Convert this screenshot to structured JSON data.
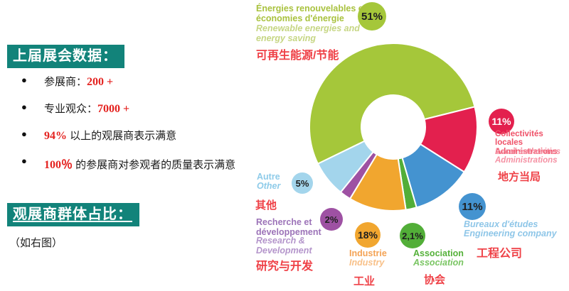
{
  "left_panel": {
    "header1": "上届展会数据：",
    "bullets": [
      {
        "pre": "参展商：",
        "em": "200 +",
        "post": ""
      },
      {
        "pre": "专业观众：",
        "em": "7000 +",
        "post": ""
      },
      {
        "pre": "",
        "em": "94%",
        "post": " 以上的观展商表示满意"
      },
      {
        "pre": "",
        "em": "100％",
        "post": " 的参展商对参观者的质量表示满意"
      }
    ],
    "header2": "观展商群体占比：",
    "note": "（如右图）"
  },
  "colors": {
    "teal": "#12837a",
    "stat_red": "#e42320",
    "chart_label_red": "#ef4147",
    "segment_gap": "#ffffff"
  },
  "chart_data": {
    "type": "pie",
    "donut": true,
    "start_angle_deg": 244,
    "unit": "%",
    "legend_position": "around-chart",
    "segments": [
      {
        "label_fr": "Énergies renouvelables et\néconomies d'énergie",
        "label_en": "Renewable energies and\nenergy saving",
        "label_zh": "可再生能源/节能",
        "value_pct": 51,
        "badge": "51%",
        "sweep_deg": 192,
        "color": "#a5c73a",
        "badge_text": "#1f1f1f",
        "fr_color": "#a9c23e",
        "en_color": "#c6d683"
      },
      {
        "label_fr": "Collectivités locales\nAdministrations",
        "label_en": "Local authorities\nAdministrations",
        "label_zh": "地方当局",
        "value_pct": 11,
        "badge": "11%",
        "sweep_deg": 46.4,
        "color": "#e3204e",
        "badge_text": "#ffffff",
        "fr_color": "#ef5168",
        "en_color": "#f591a3"
      },
      {
        "label_fr": "Bureaux d'études",
        "label_en": "Engineering company",
        "label_zh": "工程公司",
        "value_pct": 11,
        "badge": "11%",
        "sweep_deg": 41.5,
        "color": "#4493d0",
        "badge_text": "#1f1f1f",
        "fr_color": "#8ec6e8",
        "en_color": "#8ec6e8"
      },
      {
        "label_fr": "Association",
        "label_en": "Association",
        "label_zh": "协会",
        "value_pct": 2.1,
        "badge": "2,1%",
        "sweep_deg": 7.5,
        "color": "#52ae38",
        "badge_text": "#1f1f1f",
        "fr_color": "#55b13a",
        "en_color": "#79c562"
      },
      {
        "label_fr": "Industrie",
        "label_en": "Industry",
        "label_zh": "工业",
        "value_pct": 18,
        "badge": "18%",
        "sweep_deg": 39.7,
        "color": "#f1a62f",
        "badge_text": "#1f1f1f",
        "fr_color": "#f4a355",
        "en_color": "#f8c088"
      },
      {
        "label_fr": "Recherche et\ndéveloppement",
        "label_en": "Research &\nDevelopment",
        "label_zh": "研究与开发",
        "value_pct": 2,
        "badge": "2%",
        "sweep_deg": 7.8,
        "color": "#9e51a3",
        "badge_text": "#1f1f1f",
        "fr_color": "#9c73b8",
        "en_color": "#b495cb"
      },
      {
        "label_fr": "Autre",
        "label_en": "Other",
        "label_zh": "其他",
        "value_pct": 5,
        "badge": "5%",
        "sweep_deg": 25.1,
        "color": "#a3d5ec",
        "badge_text": "#1f1f1f",
        "fr_color": "#8ecbe9",
        "en_color": "#8ecbe9"
      }
    ]
  }
}
